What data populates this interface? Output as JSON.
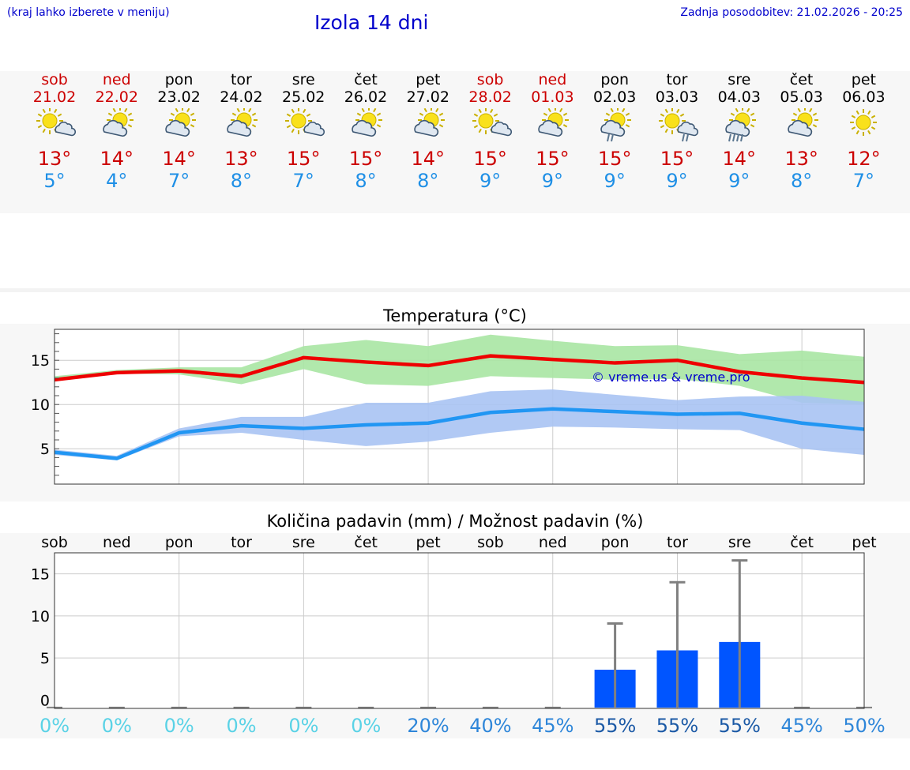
{
  "header": {
    "hint": "(kraj lahko izberete v meniju)",
    "title": "Izola 14 dni",
    "updated": "Zadnja posodobitev: 21.02.2026 - 20:25"
  },
  "days": [
    {
      "name": "sob",
      "date": "21.02",
      "weekend": true,
      "icon": "sun-cloud-icon",
      "tmax": "13°",
      "tmin": "5°"
    },
    {
      "name": "ned",
      "date": "22.02",
      "weekend": true,
      "icon": "cloud-sun-icon",
      "tmax": "14°",
      "tmin": "4°"
    },
    {
      "name": "pon",
      "date": "23.02",
      "weekend": false,
      "icon": "cloud-sun-icon",
      "tmax": "14°",
      "tmin": "7°"
    },
    {
      "name": "tor",
      "date": "24.02",
      "weekend": false,
      "icon": "cloud-sun-icon",
      "tmax": "13°",
      "tmin": "8°"
    },
    {
      "name": "sre",
      "date": "25.02",
      "weekend": false,
      "icon": "sun-cloud-icon",
      "tmax": "15°",
      "tmin": "7°"
    },
    {
      "name": "čet",
      "date": "26.02",
      "weekend": false,
      "icon": "cloud-sun-icon",
      "tmax": "15°",
      "tmin": "8°"
    },
    {
      "name": "pet",
      "date": "27.02",
      "weekend": false,
      "icon": "cloud-sun-icon",
      "tmax": "14°",
      "tmin": "8°"
    },
    {
      "name": "sob",
      "date": "28.02",
      "weekend": true,
      "icon": "sun-cloud-icon",
      "tmax": "15°",
      "tmin": "9°"
    },
    {
      "name": "ned",
      "date": "01.03",
      "weekend": true,
      "icon": "cloud-sun-icon",
      "tmax": "15°",
      "tmin": "9°"
    },
    {
      "name": "pon",
      "date": "02.03",
      "weekend": false,
      "icon": "cloud-sun-light-rain-icon",
      "tmax": "15°",
      "tmin": "9°"
    },
    {
      "name": "tor",
      "date": "03.03",
      "weekend": false,
      "icon": "sun-cloud-light-rain-icon",
      "tmax": "15°",
      "tmin": "9°"
    },
    {
      "name": "sre",
      "date": "04.03",
      "weekend": false,
      "icon": "cloud-sun-rain-icon",
      "tmax": "14°",
      "tmin": "9°"
    },
    {
      "name": "čet",
      "date": "05.03",
      "weekend": false,
      "icon": "cloud-sun-icon",
      "tmax": "13°",
      "tmin": "8°"
    },
    {
      "name": "pet",
      "date": "06.03",
      "weekend": false,
      "icon": "sun-icon",
      "tmax": "12°",
      "tmin": "7°"
    }
  ],
  "colors": {
    "max_line": "#ee0000",
    "min_line": "#2196f3",
    "max_band": "#a8e6a3",
    "min_band": "#a9c3f3",
    "bar": "#0055ff",
    "whisker": "#808080",
    "prob_low": "#5ad2e6",
    "prob_mid": "#2e86d9",
    "prob_high": "#1c5aa6"
  },
  "chart_data": [
    {
      "type": "line",
      "title": "Temperatura (°C)",
      "ylabel": "",
      "ylim": [
        1,
        18.5
      ],
      "yticks": [
        "15",
        "10",
        "5"
      ],
      "watermark": "© vreme.us & vreme.pro",
      "x": [
        0,
        1,
        2,
        3,
        4,
        5,
        6,
        7,
        8,
        9,
        10,
        11,
        12,
        13
      ],
      "series": [
        {
          "name": "max",
          "values": [
            12.8,
            13.6,
            13.8,
            13.2,
            15.3,
            14.8,
            14.4,
            15.5,
            15.1,
            14.7,
            15.0,
            13.7,
            13.0,
            12.5
          ]
        },
        {
          "name": "min",
          "values": [
            4.6,
            3.9,
            6.8,
            7.6,
            7.3,
            7.7,
            7.9,
            9.1,
            9.5,
            9.2,
            8.9,
            9.0,
            7.9,
            7.2
          ]
        },
        {
          "name": "max_range_high",
          "values": [
            13.2,
            13.9,
            14.2,
            14.2,
            16.6,
            17.3,
            16.6,
            17.9,
            17.2,
            16.6,
            16.7,
            15.7,
            16.1,
            15.4
          ]
        },
        {
          "name": "max_range_low",
          "values": [
            12.7,
            13.5,
            13.4,
            12.3,
            14.0,
            12.3,
            12.1,
            13.2,
            13.0,
            12.8,
            12.9,
            12.1,
            10.2,
            10.0
          ]
        },
        {
          "name": "min_range_high",
          "values": [
            4.9,
            4.2,
            7.3,
            8.6,
            8.6,
            10.2,
            10.2,
            11.5,
            11.7,
            11.1,
            10.5,
            10.9,
            11.0,
            10.3
          ]
        },
        {
          "name": "min_range_low",
          "values": [
            4.3,
            3.7,
            6.4,
            6.8,
            6.0,
            5.3,
            5.8,
            6.8,
            7.5,
            7.4,
            7.2,
            7.1,
            5.0,
            4.3
          ]
        }
      ]
    },
    {
      "type": "bar",
      "title": "Količina padavin (mm) / Možnost padavin (%)",
      "ylim": [
        -1,
        17.5
      ],
      "yticks": [
        "15",
        "10",
        "5",
        "0"
      ],
      "categories": [
        "sob",
        "ned",
        "pon",
        "tor",
        "sre",
        "čet",
        "pet",
        "sob",
        "ned",
        "pon",
        "tor",
        "sre",
        "čet",
        "pet"
      ],
      "values": [
        0,
        0,
        0,
        0,
        0,
        0,
        0,
        0,
        0,
        3.6,
        5.9,
        6.9,
        0,
        0
      ],
      "error_high": [
        0,
        0,
        0,
        0,
        0,
        0,
        0,
        0,
        0,
        9.1,
        14.0,
        16.6,
        0,
        0
      ],
      "probability": [
        "0%",
        "0%",
        "0%",
        "0%",
        "0%",
        "0%",
        "20%",
        "40%",
        "45%",
        "55%",
        "55%",
        "55%",
        "45%",
        "50%"
      ],
      "probability_values": [
        0,
        0,
        0,
        0,
        0,
        0,
        20,
        40,
        45,
        55,
        55,
        55,
        45,
        50
      ]
    }
  ]
}
